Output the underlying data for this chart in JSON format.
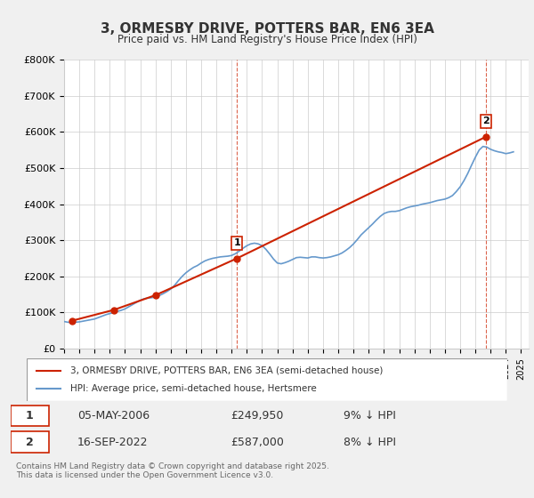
{
  "title": "3, ORMESBY DRIVE, POTTERS BAR, EN6 3EA",
  "subtitle": "Price paid vs. HM Land Registry's House Price Index (HPI)",
  "ylabel_ticks": [
    "£0",
    "£100K",
    "£200K",
    "£300K",
    "£400K",
    "£500K",
    "£600K",
    "£700K",
    "£800K"
  ],
  "ylim": [
    0,
    800000
  ],
  "xlim_start": 1995.0,
  "xlim_end": 2025.5,
  "bg_color": "#f0f0f0",
  "plot_bg_color": "#ffffff",
  "hpi_color": "#6699cc",
  "price_color": "#cc2200",
  "dashed_line_color": "#cc2200",
  "annotation1": {
    "label": "1",
    "date": "05-MAY-2006",
    "price": "£249,950",
    "hpi_diff": "9% ↓ HPI",
    "x_year": 2006.35,
    "y_price": 249950
  },
  "annotation2": {
    "label": "2",
    "date": "16-SEP-2022",
    "price": "£587,000",
    "hpi_diff": "8% ↓ HPI",
    "x_year": 2022.71,
    "y_price": 587000
  },
  "legend_line1": "3, ORMESBY DRIVE, POTTERS BAR, EN6 3EA (semi-detached house)",
  "legend_line2": "HPI: Average price, semi-detached house, Hertsmere",
  "footer": "Contains HM Land Registry data © Crown copyright and database right 2025.\nThis data is licensed under the Open Government Licence v3.0.",
  "hpi_data_x": [
    1995.0,
    1995.25,
    1995.5,
    1995.75,
    1996.0,
    1996.25,
    1996.5,
    1996.75,
    1997.0,
    1997.25,
    1997.5,
    1997.75,
    1998.0,
    1998.25,
    1998.5,
    1998.75,
    1999.0,
    1999.25,
    1999.5,
    1999.75,
    2000.0,
    2000.25,
    2000.5,
    2000.75,
    2001.0,
    2001.25,
    2001.5,
    2001.75,
    2002.0,
    2002.25,
    2002.5,
    2002.75,
    2003.0,
    2003.25,
    2003.5,
    2003.75,
    2004.0,
    2004.25,
    2004.5,
    2004.75,
    2005.0,
    2005.25,
    2005.5,
    2005.75,
    2006.0,
    2006.25,
    2006.5,
    2006.75,
    2007.0,
    2007.25,
    2007.5,
    2007.75,
    2008.0,
    2008.25,
    2008.5,
    2008.75,
    2009.0,
    2009.25,
    2009.5,
    2009.75,
    2010.0,
    2010.25,
    2010.5,
    2010.75,
    2011.0,
    2011.25,
    2011.5,
    2011.75,
    2012.0,
    2012.25,
    2012.5,
    2012.75,
    2013.0,
    2013.25,
    2013.5,
    2013.75,
    2014.0,
    2014.25,
    2014.5,
    2014.75,
    2015.0,
    2015.25,
    2015.5,
    2015.75,
    2016.0,
    2016.25,
    2016.5,
    2016.75,
    2017.0,
    2017.25,
    2017.5,
    2017.75,
    2018.0,
    2018.25,
    2018.5,
    2018.75,
    2019.0,
    2019.25,
    2019.5,
    2019.75,
    2020.0,
    2020.25,
    2020.5,
    2020.75,
    2021.0,
    2021.25,
    2021.5,
    2021.75,
    2022.0,
    2022.25,
    2022.5,
    2022.75,
    2023.0,
    2023.25,
    2023.5,
    2023.75,
    2024.0,
    2024.25,
    2024.5
  ],
  "hpi_data_y": [
    75000,
    73000,
    72000,
    73000,
    74000,
    76000,
    78000,
    80000,
    82000,
    86000,
    90000,
    94000,
    97000,
    100000,
    103000,
    106000,
    110000,
    116000,
    122000,
    128000,
    134000,
    138000,
    140000,
    141000,
    143000,
    147000,
    152000,
    158000,
    165000,
    175000,
    188000,
    200000,
    210000,
    218000,
    225000,
    230000,
    237000,
    243000,
    247000,
    250000,
    252000,
    254000,
    255000,
    256000,
    258000,
    263000,
    270000,
    278000,
    285000,
    290000,
    292000,
    290000,
    285000,
    275000,
    262000,
    248000,
    237000,
    235000,
    238000,
    242000,
    247000,
    252000,
    253000,
    252000,
    251000,
    254000,
    254000,
    252000,
    251000,
    252000,
    254000,
    257000,
    260000,
    265000,
    272000,
    280000,
    290000,
    302000,
    315000,
    325000,
    335000,
    345000,
    356000,
    366000,
    374000,
    378000,
    380000,
    380000,
    382000,
    386000,
    390000,
    393000,
    395000,
    397000,
    400000,
    402000,
    404000,
    407000,
    410000,
    412000,
    414000,
    418000,
    424000,
    435000,
    448000,
    465000,
    485000,
    508000,
    530000,
    550000,
    560000,
    558000,
    552000,
    548000,
    545000,
    543000,
    540000,
    542000,
    545000
  ],
  "price_paid_x": [
    1995.5,
    1998.25,
    2001.0,
    2006.35,
    2022.71
  ],
  "price_paid_y": [
    77000,
    107000,
    148000,
    249950,
    587000
  ]
}
